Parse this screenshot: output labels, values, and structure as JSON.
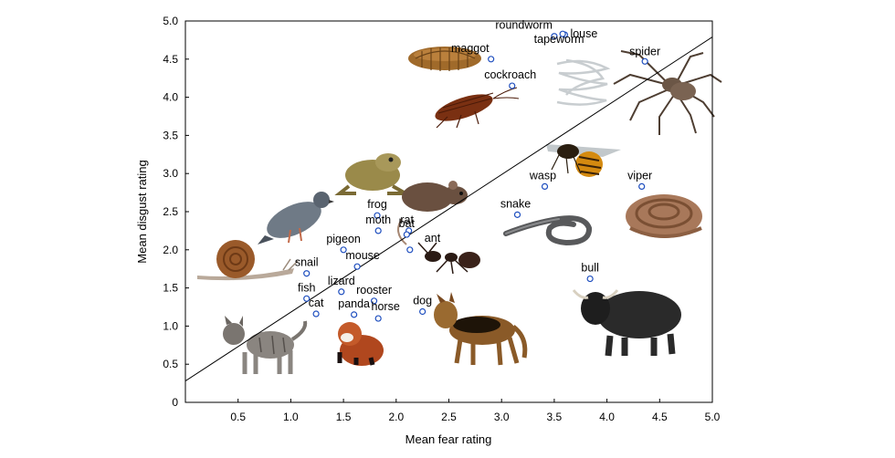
{
  "chart_data": {
    "type": "scatter",
    "xlabel": "Mean fear rating",
    "ylabel": "Mean disgust rating",
    "xlim": [
      0,
      5
    ],
    "ylim": [
      0,
      5
    ],
    "x_ticks": [
      "0.5",
      "1.0",
      "1.5",
      "2.0",
      "2.5",
      "3.0",
      "3.5",
      "4.0",
      "4.5",
      "5.0"
    ],
    "y_ticks": [
      "0",
      "0.5",
      "1.0",
      "1.5",
      "2.0",
      "2.5",
      "3.0",
      "3.5",
      "4.0",
      "4.5",
      "5.0"
    ],
    "grid": false,
    "marker_color": "#1f4fbf",
    "fit_line": {
      "x": [
        0,
        5
      ],
      "y": [
        0.28,
        4.79
      ]
    },
    "points": [
      {
        "label": "roundworm",
        "x": 3.5,
        "y": 4.8
      },
      {
        "label": "louse",
        "x": 3.6,
        "y": 4.82
      },
      {
        "label": "tapeworm",
        "x": 3.58,
        "y": 4.83
      },
      {
        "label": "maggot",
        "x": 2.9,
        "y": 4.5
      },
      {
        "label": "spider",
        "x": 4.36,
        "y": 4.47
      },
      {
        "label": "cockroach",
        "x": 3.1,
        "y": 4.15
      },
      {
        "label": "wasp",
        "x": 3.41,
        "y": 2.83
      },
      {
        "label": "viper",
        "x": 4.33,
        "y": 2.83
      },
      {
        "label": "snake",
        "x": 3.15,
        "y": 2.46
      },
      {
        "label": "frog",
        "x": 1.82,
        "y": 2.45
      },
      {
        "label": "moth",
        "x": 1.83,
        "y": 2.25
      },
      {
        "label": "rat",
        "x": 2.12,
        "y": 2.25
      },
      {
        "label": "bat",
        "x": 2.1,
        "y": 2.2
      },
      {
        "label": "ant",
        "x": 2.13,
        "y": 2.0
      },
      {
        "label": "pigeon",
        "x": 1.5,
        "y": 2.0
      },
      {
        "label": "mouse",
        "x": 1.63,
        "y": 1.78
      },
      {
        "label": "snail",
        "x": 1.15,
        "y": 1.69
      },
      {
        "label": "bull",
        "x": 3.84,
        "y": 1.62
      },
      {
        "label": "lizard",
        "x": 1.48,
        "y": 1.45
      },
      {
        "label": "fish",
        "x": 1.15,
        "y": 1.36
      },
      {
        "label": "rooster",
        "x": 1.79,
        "y": 1.33
      },
      {
        "label": "cat",
        "x": 1.24,
        "y": 1.16
      },
      {
        "label": "panda",
        "x": 1.6,
        "y": 1.15
      },
      {
        "label": "horse",
        "x": 1.83,
        "y": 1.1
      },
      {
        "label": "dog",
        "x": 2.25,
        "y": 1.19
      }
    ]
  },
  "images": [
    {
      "name": "maggot-image",
      "color": "#a06a2a"
    },
    {
      "name": "cockroach-image",
      "color": "#7a3012"
    },
    {
      "name": "tapeworm-image",
      "color": "#d7dadc"
    },
    {
      "name": "spider-image",
      "color": "#6b5646"
    },
    {
      "name": "wasp-image",
      "color": "#d48a10"
    },
    {
      "name": "viper-image",
      "color": "#a8785a"
    },
    {
      "name": "snake-image",
      "color": "#58595b"
    },
    {
      "name": "frog-image",
      "color": "#9a8a4a"
    },
    {
      "name": "rat-image",
      "color": "#6a5040"
    },
    {
      "name": "ant-image",
      "color": "#2a1a14"
    },
    {
      "name": "pigeon-image",
      "color": "#6f7a86"
    },
    {
      "name": "snail-image",
      "color": "#9a5a2a"
    },
    {
      "name": "bull-image",
      "color": "#2a2a2a"
    },
    {
      "name": "dog-image",
      "color": "#8a5a28"
    },
    {
      "name": "panda-image",
      "color": "#b0471e"
    },
    {
      "name": "cat-image",
      "color": "#8a8580"
    }
  ]
}
